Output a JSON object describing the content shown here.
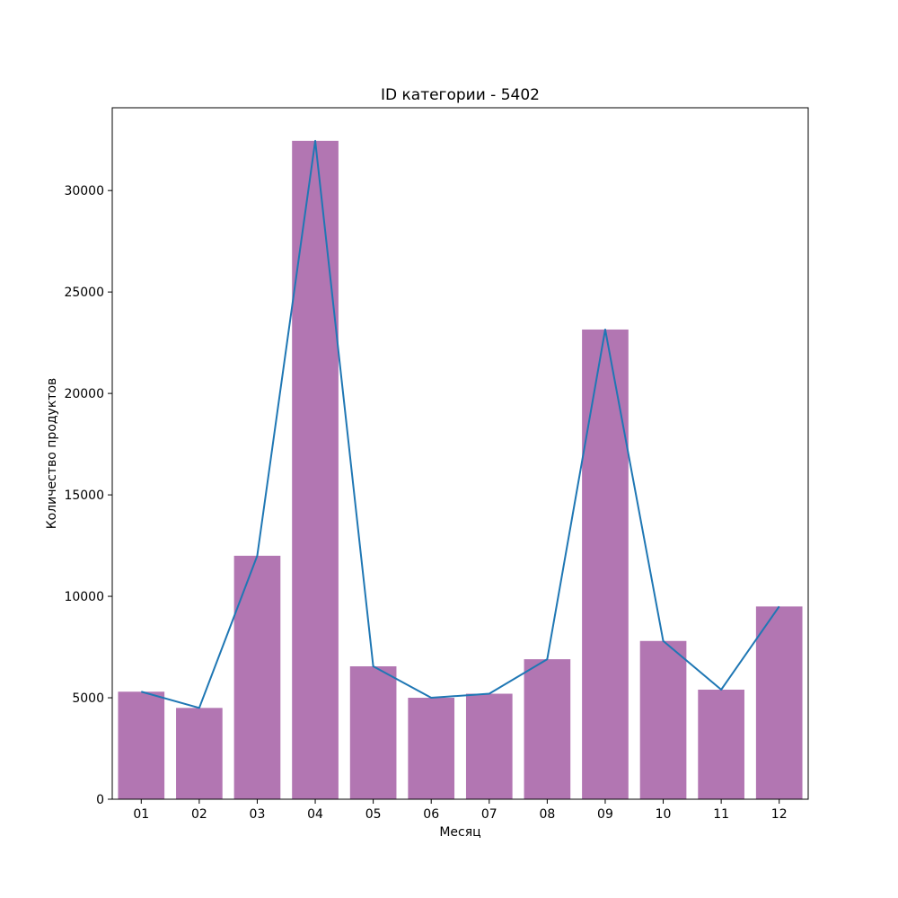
{
  "chart_data": {
    "type": "bar",
    "title": "ID категории - 5402",
    "xlabel": "Месяц",
    "ylabel": "Количество продуктов",
    "categories": [
      "01",
      "02",
      "03",
      "04",
      "05",
      "06",
      "07",
      "08",
      "09",
      "10",
      "11",
      "12"
    ],
    "series": [
      {
        "kind": "bar",
        "values": [
          5300,
          4500,
          12000,
          32450,
          6550,
          5000,
          5200,
          6900,
          23150,
          7800,
          5400,
          9500
        ],
        "color": "#b276b2"
      },
      {
        "kind": "line",
        "values": [
          5300,
          4500,
          12000,
          32450,
          6550,
          5000,
          5200,
          6900,
          23150,
          7800,
          5400,
          9500
        ],
        "color": "#1f77b4"
      }
    ],
    "ylim": [
      0,
      34080
    ],
    "yticks": [
      "0",
      "5000",
      "10000",
      "15000",
      "20000",
      "25000",
      "30000"
    ],
    "grid": false,
    "legend": "none"
  }
}
